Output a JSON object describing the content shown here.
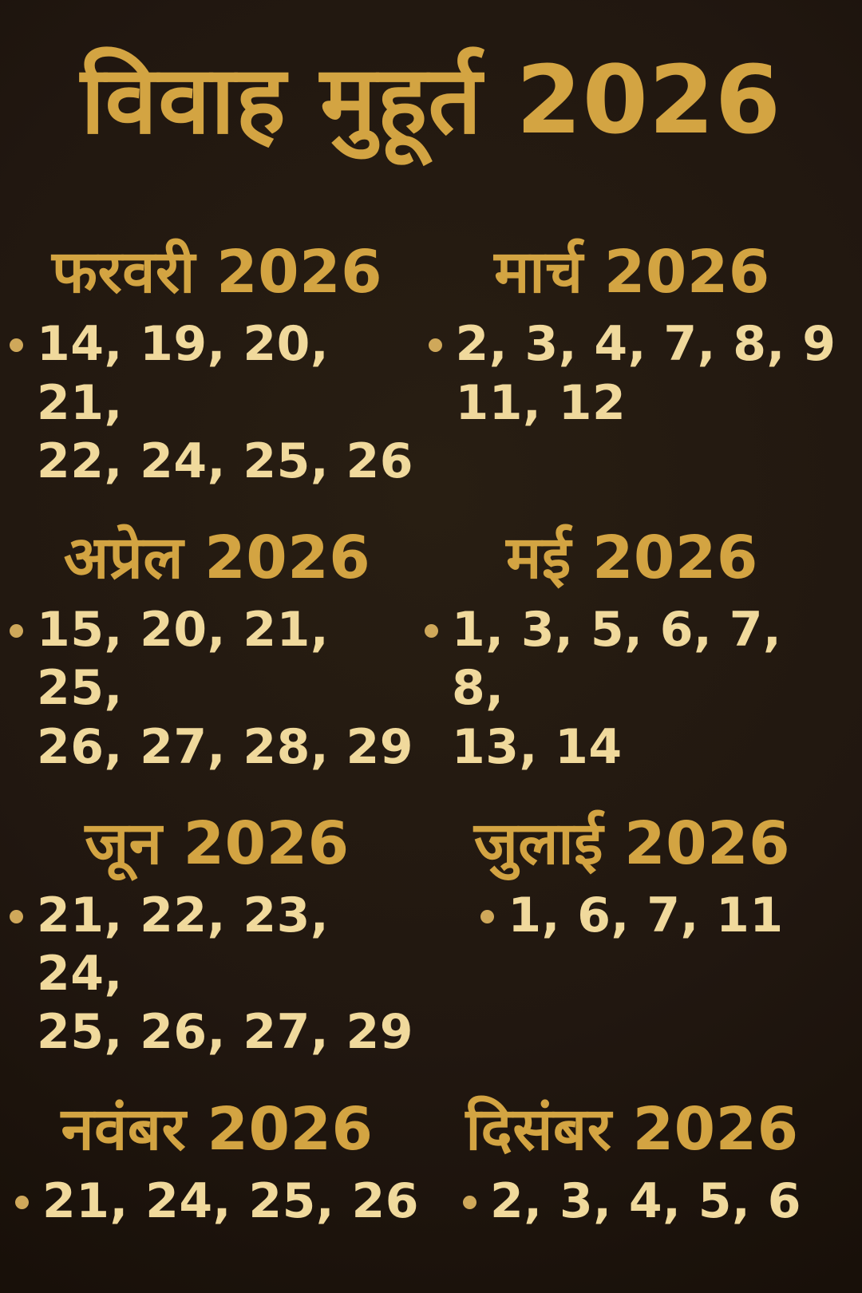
{
  "page": {
    "title": "विवाह मुहूर्त 2026",
    "colors": {
      "background": "#1d140b",
      "heading_gold": "#d3a442",
      "date_cream": "#f0d99c",
      "bullet_gold": "#cfa85a"
    },
    "sections": [
      {
        "month": "फरवरी 2026",
        "dates": [
          14,
          19,
          20,
          21,
          22,
          24,
          25,
          26
        ],
        "line1": "14, 19, 20, 21,",
        "line2": "22, 24, 25, 26"
      },
      {
        "month": "मार्च 2026",
        "dates": [
          2,
          3,
          4,
          7,
          8,
          9,
          11,
          12
        ],
        "line1": "2, 3, 4, 7, 8, 9",
        "line2": "11, 12"
      },
      {
        "month": "अप्रेल 2026",
        "dates": [
          15,
          20,
          21,
          25,
          26,
          27,
          28,
          29
        ],
        "line1": "15, 20, 21, 25,",
        "line2": "26, 27, 28, 29"
      },
      {
        "month": "मई 2026",
        "dates": [
          1,
          3,
          5,
          6,
          7,
          8,
          13,
          14
        ],
        "line1": "1, 3, 5, 6, 7, 8,",
        "line2": "13, 14"
      },
      {
        "month": "जून 2026",
        "dates": [
          21,
          22,
          23,
          24,
          25,
          26,
          27,
          29
        ],
        "line1": "21, 22, 23, 24,",
        "line2": "25, 26, 27, 29"
      },
      {
        "month": "जुलाई 2026",
        "dates": [
          1,
          6,
          7,
          11
        ],
        "line1": "1, 6, 7, 11"
      },
      {
        "month": "नवंबर 2026",
        "dates": [
          21,
          24,
          25,
          26
        ],
        "line1": "21, 24, 25, 26"
      },
      {
        "month": "दिसंबर 2026",
        "dates": [
          2,
          3,
          4,
          5,
          6
        ],
        "line1": "2, 3, 4, 5, 6"
      }
    ]
  }
}
